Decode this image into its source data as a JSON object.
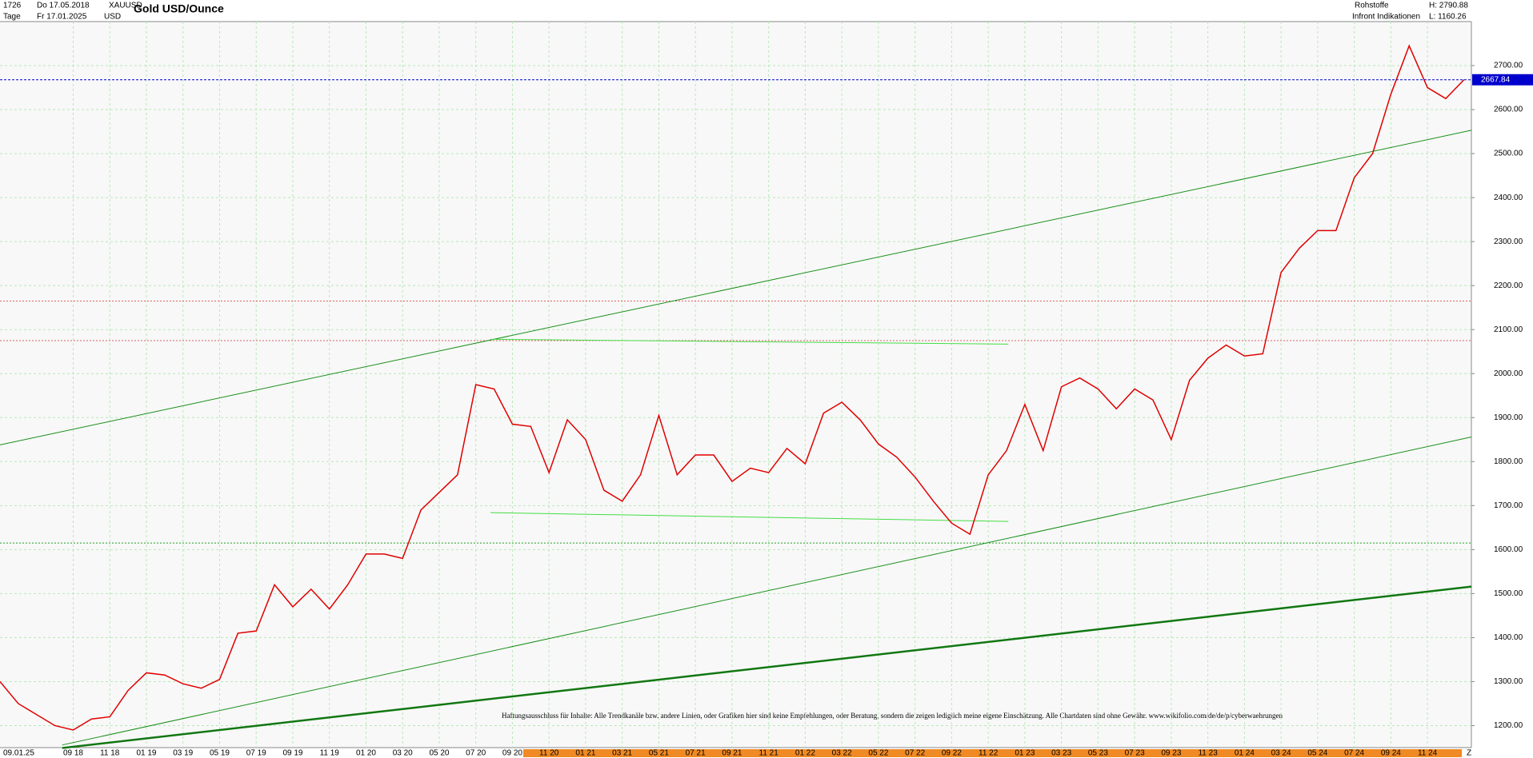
{
  "header": {
    "count": "1726",
    "start": "Do 17.05.2018",
    "symbol": "XAUUSD",
    "period": "Tage",
    "end": "Fr 17.01.2025",
    "currency": "USD",
    "group": "Rohstoffe",
    "source": "Infront Indikationen",
    "high": "H: 2790.88",
    "low": "L: 1160.26",
    "cursor_date": "09.01.25",
    "corner": "Z"
  },
  "chart_data": {
    "type": "line",
    "title": "Gold USD/Ounce",
    "categories": [
      null,
      null,
      null,
      null,
      "09 18",
      null,
      "11 18",
      null,
      "01 19",
      null,
      "03 19",
      null,
      "05 19",
      null,
      "07 19",
      null,
      "09 19",
      null,
      "11 19",
      null,
      "01 20",
      null,
      "03 20",
      null,
      "05 20",
      null,
      "07 20",
      null,
      "09 20",
      null,
      "11 20",
      null,
      "01 21",
      null,
      "03 21",
      null,
      "05 21",
      null,
      "07 21",
      null,
      "09 21",
      null,
      "11 21",
      null,
      "01 22",
      null,
      "03 22",
      null,
      "05 22",
      null,
      "07 22",
      null,
      "09 22",
      null,
      "11 22",
      null,
      "01 23",
      null,
      "03 23",
      null,
      "05 23",
      null,
      "07 23",
      null,
      "09 23",
      null,
      "11 23",
      null,
      "01 24",
      null,
      "03 24",
      null,
      "05 24",
      null,
      "07 24",
      null,
      "09 24",
      null,
      "11 24",
      null,
      null
    ],
    "series": [
      {
        "name": "XAUUSD",
        "color": "#e00000",
        "values": [
          1300,
          1250,
          1225,
          1200,
          1190,
          1215,
          1220,
          1280,
          1320,
          1315,
          1295,
          1285,
          1305,
          1410,
          1415,
          1520,
          1470,
          1510,
          1465,
          1520,
          1590,
          1590,
          1580,
          1690,
          1730,
          1770,
          1975,
          1965,
          1885,
          1880,
          1775,
          1895,
          1850,
          1735,
          1710,
          1770,
          1905,
          1770,
          1815,
          1815,
          1755,
          1785,
          1775,
          1830,
          1795,
          1910,
          1935,
          1895,
          1840,
          1810,
          1765,
          1710,
          1660,
          1635,
          1770,
          1825,
          1930,
          1825,
          1970,
          1990,
          1965,
          1920,
          1965,
          1940,
          1850,
          1985,
          2035,
          2065,
          2040,
          2045,
          2230,
          2285,
          2325,
          2325,
          2445,
          2500,
          2635,
          2745,
          2650,
          2625,
          2668
        ]
      }
    ],
    "ylim": [
      1150,
      2800
    ],
    "yticks": [
      {
        "value": 1200,
        "label": "1200.00"
      },
      {
        "value": 1300,
        "label": "1300.00"
      },
      {
        "value": 1400,
        "label": "1400.00"
      },
      {
        "value": 1500,
        "label": "1500.00"
      },
      {
        "value": 1600,
        "label": "1600.00"
      },
      {
        "value": 1700,
        "label": "1700.00"
      },
      {
        "value": 1800,
        "label": "1800.00"
      },
      {
        "value": 1900,
        "label": "1900.00"
      },
      {
        "value": 2000,
        "label": "2000.00"
      },
      {
        "value": 2100,
        "label": "2100.00"
      },
      {
        "value": 2200,
        "label": "2200.00"
      },
      {
        "value": 2300,
        "label": "2300.00"
      },
      {
        "value": 2400,
        "label": "2400.00"
      },
      {
        "value": 2500,
        "label": "2500.00"
      },
      {
        "value": 2600,
        "label": "2600.00"
      },
      {
        "value": 2700,
        "label": "2700.00"
      }
    ],
    "grid": true,
    "last_price": {
      "value": 2667.84,
      "color": "#0000cc"
    },
    "hlines": [
      {
        "value": 2165,
        "color": "#e06060"
      },
      {
        "value": 2075,
        "color": "#e06060"
      },
      {
        "value": 1615,
        "color": "#20a020"
      }
    ],
    "trendlines": [
      {
        "x": [
          0,
          80.4
        ],
        "values": [
          1838,
          2553
        ],
        "color": "#1a8f1a",
        "width": 1
      },
      {
        "x": [
          3.4,
          80.4
        ],
        "values": [
          1156,
          1856
        ],
        "color": "#1a8f1a",
        "width": 1
      },
      {
        "x": [
          3.4,
          80.4
        ],
        "values": [
          1149,
          1516
        ],
        "color": "#117711",
        "width": 2.5
      },
      {
        "x": [
          26.8,
          55.1
        ],
        "values": [
          2078,
          2067
        ],
        "color": "#44dd44",
        "width": 1
      },
      {
        "x": [
          26.8,
          55.1
        ],
        "values": [
          1684,
          1664
        ],
        "color": "#44dd44",
        "width": 1
      }
    ],
    "disclaimer": "Haftungsausschluss für Inhalte: Alle Trendkanäle bzw. andere Linien, oder Grafiken hier sind keine Empfehlungen, oder Beratung, sondern die zeigen lediglich meine eigene Einschätzung. Alle Chartdaten sind ohne Gewähr. www.wikifolio.com/de/de/p/cyberwaehrungen"
  }
}
